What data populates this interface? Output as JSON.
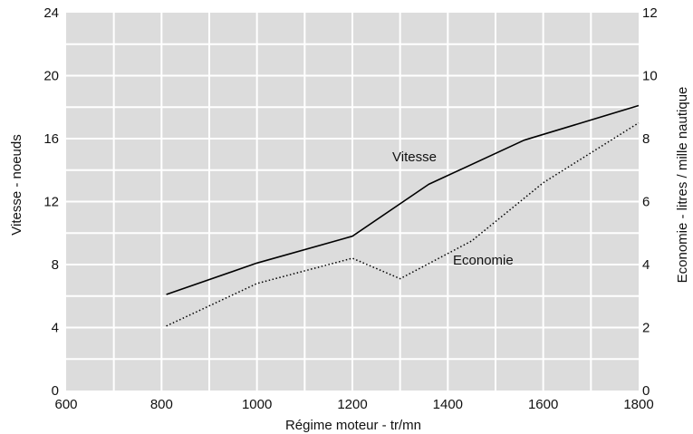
{
  "chart_data": {
    "type": "line",
    "xlabel": "Régime moteur - tr/mn",
    "ylabel_left": "Vitesse - noeuds",
    "ylabel_right": "Economie - litres / mille nautique",
    "xlim": [
      600,
      1800
    ],
    "ylim_left": [
      0,
      24
    ],
    "ylim_right": [
      0,
      12
    ],
    "x_ticks": [
      600,
      800,
      1000,
      1200,
      1400,
      1600,
      1800
    ],
    "y_left_ticks": [
      0,
      4,
      8,
      12,
      16,
      20,
      24
    ],
    "y_right_ticks": [
      0,
      2,
      4,
      6,
      8,
      10,
      12
    ],
    "grid": true,
    "grid_background": "#dcdcdc",
    "grid_line_color": "#ffffff",
    "series": [
      {
        "name": "Vitesse",
        "axis": "left",
        "style": "solid",
        "color": "#000000",
        "x": [
          810,
          1000,
          1200,
          1360,
          1560,
          1800
        ],
        "y": [
          6.1,
          8.1,
          9.8,
          13.1,
          15.9,
          18.1
        ]
      },
      {
        "name": "Economie",
        "axis": "right",
        "style": "dotted",
        "color": "#000000",
        "x": [
          810,
          1000,
          1200,
          1300,
          1450,
          1600,
          1800
        ],
        "y": [
          2.05,
          3.4,
          4.2,
          3.55,
          4.75,
          6.6,
          8.5
        ]
      }
    ]
  }
}
